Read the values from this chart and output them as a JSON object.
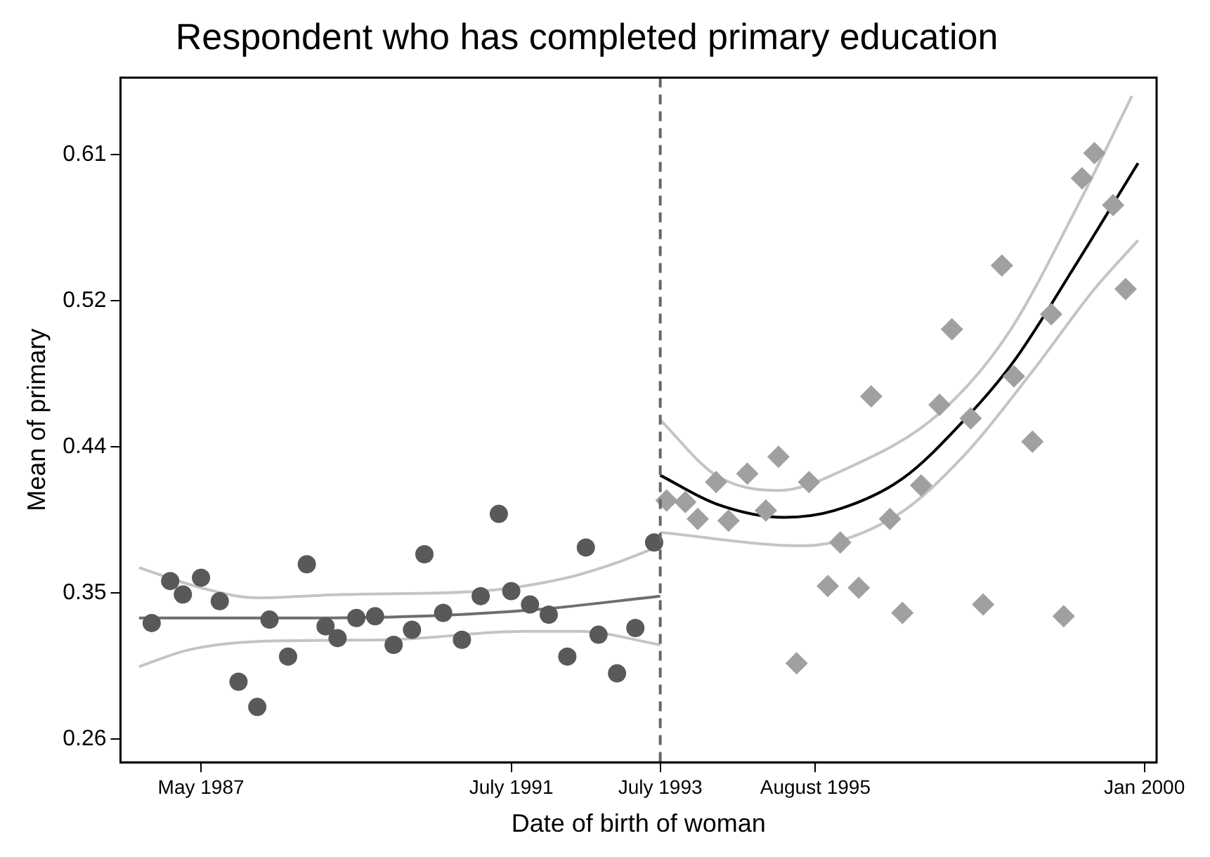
{
  "chart_data": {
    "type": "scatter",
    "title": "Respondent who has completed primary education",
    "xlabel": "Date of birth of woman",
    "ylabel": "Mean of primary",
    "xlim": [
      "1986-04",
      "2000-03"
    ],
    "xticks": [
      {
        "value": "1987-05",
        "label": "May 1987"
      },
      {
        "value": "1991-07",
        "label": "July 1991"
      },
      {
        "value": "1993-07",
        "label": "July 1993"
      },
      {
        "value": "1995-08",
        "label": "August 1995"
      },
      {
        "value": "2000-01",
        "label": "Jan 2000"
      }
    ],
    "ylim": [
      0.248,
      0.656
    ],
    "yticks": [
      {
        "value": 0.262,
        "label": "0.26"
      },
      {
        "value": 0.349,
        "label": "0.35"
      },
      {
        "value": 0.436,
        "label": "0.44"
      },
      {
        "value": 0.523,
        "label": "0.52"
      },
      {
        "value": 0.61,
        "label": "0.61"
      }
    ],
    "grid": false,
    "legend": false,
    "ref_lines": [
      {
        "axis": "x",
        "value": "1993-07",
        "color": "#666666",
        "line_style": "dashed"
      }
    ],
    "series": [
      {
        "marker": "circle",
        "color": "#595959",
        "x": [
          "1986-09",
          "1986-12",
          "1987-02",
          "1987-05",
          "1987-08",
          "1987-11",
          "1988-02",
          "1988-04",
          "1988-07",
          "1988-10",
          "1989-01",
          "1989-03",
          "1989-06",
          "1989-09",
          "1989-12",
          "1990-03",
          "1990-05",
          "1990-08",
          "1990-11",
          "1991-02",
          "1991-05",
          "1991-07",
          "1991-10",
          "1992-01",
          "1992-04",
          "1992-07",
          "1992-09",
          "1992-12",
          "1993-03",
          "1993-06"
        ],
        "values": [
          0.331,
          0.356,
          0.348,
          0.358,
          0.344,
          0.296,
          0.281,
          0.333,
          0.311,
          0.366,
          0.329,
          0.322,
          0.334,
          0.335,
          0.318,
          0.327,
          0.372,
          0.337,
          0.321,
          0.347,
          0.396,
          0.35,
          0.342,
          0.336,
          0.311,
          0.376,
          0.324,
          0.301,
          0.328,
          0.379
        ]
      },
      {
        "marker": "diamond",
        "color": "#a0a0a0",
        "x": [
          "1993-08",
          "1993-11",
          "1994-01",
          "1994-04",
          "1994-06",
          "1994-09",
          "1994-12",
          "1995-02",
          "1995-05",
          "1995-07",
          "1995-10",
          "1995-12",
          "1996-03",
          "1996-05",
          "1996-08",
          "1996-10",
          "1997-01",
          "1997-04",
          "1997-06",
          "1997-09",
          "1997-11",
          "1998-02",
          "1998-04",
          "1998-07",
          "1998-10",
          "1998-12",
          "1999-03",
          "1999-05",
          "1999-08",
          "1999-10"
        ],
        "values": [
          0.404,
          0.403,
          0.393,
          0.415,
          0.392,
          0.42,
          0.398,
          0.43,
          0.307,
          0.415,
          0.353,
          0.379,
          0.352,
          0.466,
          0.393,
          0.337,
          0.413,
          0.461,
          0.506,
          0.453,
          0.342,
          0.544,
          0.478,
          0.439,
          0.515,
          0.335,
          0.596,
          0.611,
          0.58,
          0.53
        ]
      },
      {
        "type": "line",
        "marker": "none",
        "line_style": "solid",
        "color": "#6e6e6e",
        "x": [
          "1986-07",
          "1988-08",
          "1990-04",
          "1991-11",
          "1993-07"
        ],
        "values": [
          0.334,
          0.334,
          0.335,
          0.339,
          0.347
        ]
      },
      {
        "type": "line",
        "marker": "none",
        "line_style": "solid",
        "color": "#c4c4c4",
        "x": [
          "1986-07",
          "1987-05",
          "1988-02",
          "1989-04",
          "1991-02",
          "1992-04",
          "1992-12",
          "1993-07"
        ],
        "values": [
          0.364,
          0.352,
          0.346,
          0.348,
          0.35,
          0.358,
          0.367,
          0.377
        ]
      },
      {
        "type": "line",
        "marker": "none",
        "line_style": "solid",
        "color": "#c4c4c4",
        "x": [
          "1986-07",
          "1987-03",
          "1988-02",
          "1989-11",
          "1991-09",
          "1992-06",
          "1993-07"
        ],
        "values": [
          0.305,
          0.315,
          0.32,
          0.321,
          0.326,
          0.326,
          0.318
        ]
      },
      {
        "type": "line",
        "marker": "none",
        "line_style": "solid",
        "color": "#000000",
        "x": [
          "1993-07",
          "1994-04",
          "1995-03",
          "1995-11",
          "1996-10",
          "1997-08",
          "1998-04",
          "1999-02",
          "1999-12"
        ],
        "values": [
          0.419,
          0.402,
          0.394,
          0.398,
          0.417,
          0.452,
          0.487,
          0.545,
          0.605
        ]
      },
      {
        "type": "line",
        "marker": "none",
        "line_style": "solid",
        "color": "#c4c4c4",
        "x": [
          "1993-07",
          "1994-04",
          "1995-02",
          "1996-01",
          "1997-04",
          "1998-03",
          "1999-02",
          "1999-11"
        ],
        "values": [
          0.452,
          0.419,
          0.41,
          0.423,
          0.456,
          0.503,
          0.578,
          0.645
        ]
      },
      {
        "type": "line",
        "marker": "none",
        "line_style": "solid",
        "color": "#c4c4c4",
        "x": [
          "1993-07",
          "1995-06",
          "1996-09",
          "1997-08",
          "1998-07",
          "1999-05",
          "1999-12"
        ],
        "values": [
          0.385,
          0.377,
          0.395,
          0.431,
          0.481,
          0.53,
          0.559
        ]
      }
    ]
  }
}
